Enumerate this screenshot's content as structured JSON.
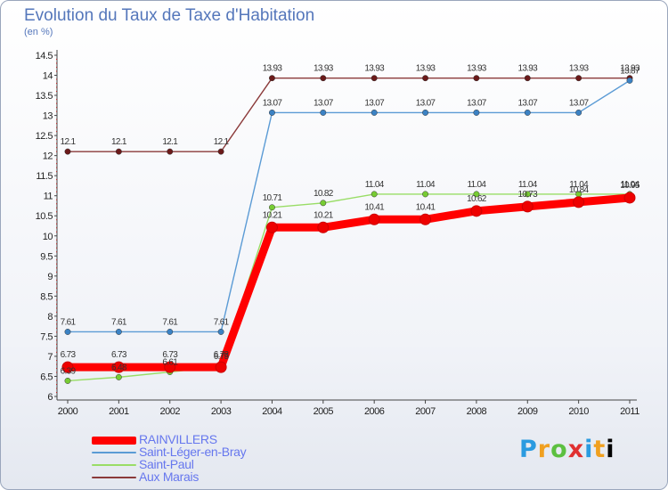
{
  "title": "Evolution du Taux de Taxe d'Habitation",
  "unit": "(en %)",
  "logo": [
    "P",
    "r",
    "o",
    "x",
    "i",
    "t",
    "i"
  ],
  "chart_data": {
    "type": "line",
    "x": [
      "2000",
      "2001",
      "2002",
      "2003",
      "2004",
      "2005",
      "2006",
      "2007",
      "2008",
      "2009",
      "2010",
      "2011"
    ],
    "ylim": [
      6,
      14.5
    ],
    "yticks": [
      "6",
      "6.5",
      "7",
      "7.5",
      "8",
      "8.5",
      "9",
      "9.5",
      "10",
      "10.5",
      "11",
      "11.5",
      "12",
      "12.5",
      "13",
      "13.5",
      "14",
      "14.5"
    ],
    "grid": false,
    "legend_position": "bottom-left",
    "series": [
      {
        "name": "Aux Marais",
        "color": "#8b3a3a",
        "dot": "#6b1a1a",
        "values": [
          12.1,
          12.1,
          12.1,
          12.1,
          13.93,
          13.93,
          13.93,
          13.93,
          13.93,
          13.93,
          13.93,
          13.93
        ],
        "labels": [
          "12.1",
          "12.1",
          "12.1",
          "12.1",
          "13.93",
          "13.93",
          "13.93",
          "13.93",
          "13.93",
          "13.93",
          "13.93",
          "13.93"
        ]
      },
      {
        "name": "Saint-Léger-en-Bray",
        "color": "#5b9bd5",
        "dot": "#3b82c4",
        "values": [
          7.61,
          7.61,
          7.61,
          7.61,
          13.07,
          13.07,
          13.07,
          13.07,
          13.07,
          13.07,
          13.07,
          13.87
        ],
        "labels": [
          "7.61",
          "7.61",
          "7.61",
          "7.61",
          "13.07",
          "13.07",
          "13.07",
          "13.07",
          "13.07",
          "13.07",
          "13.07",
          "13.87"
        ]
      },
      {
        "name": "Saint-Paul",
        "color": "#99dd66",
        "dot": "#77cc33",
        "values": [
          6.39,
          6.48,
          6.61,
          6.75,
          10.71,
          10.82,
          11.04,
          11.04,
          11.04,
          11.04,
          11.04,
          11.04
        ],
        "labels": [
          "6.39",
          "6.48",
          "6.61",
          "6.75",
          "10.71",
          "10.82",
          "11.04",
          "11.04",
          "11.04",
          "11.04",
          "11.04",
          "11.04"
        ]
      },
      {
        "name": "RAINVILLERS",
        "color": "#ff0000",
        "dot": "#ee0000",
        "values": [
          6.73,
          6.73,
          6.73,
          6.73,
          10.21,
          10.21,
          10.41,
          10.41,
          10.62,
          10.73,
          10.84,
          10.95
        ],
        "labels": [
          "6.73",
          "6.73",
          "6.73",
          "6.73",
          "10.21",
          "10.21",
          "10.41",
          "10.41",
          "10.62",
          "10.73",
          "10.84",
          "10.95"
        ]
      }
    ],
    "legend": [
      {
        "name": "RAINVILLERS",
        "color": "#ff0000"
      },
      {
        "name": "Saint-Léger-en-Bray",
        "color": "#5b9bd5"
      },
      {
        "name": "Saint-Paul",
        "color": "#99dd66"
      },
      {
        "name": "Aux Marais",
        "color": "#8b3a3a"
      }
    ]
  }
}
